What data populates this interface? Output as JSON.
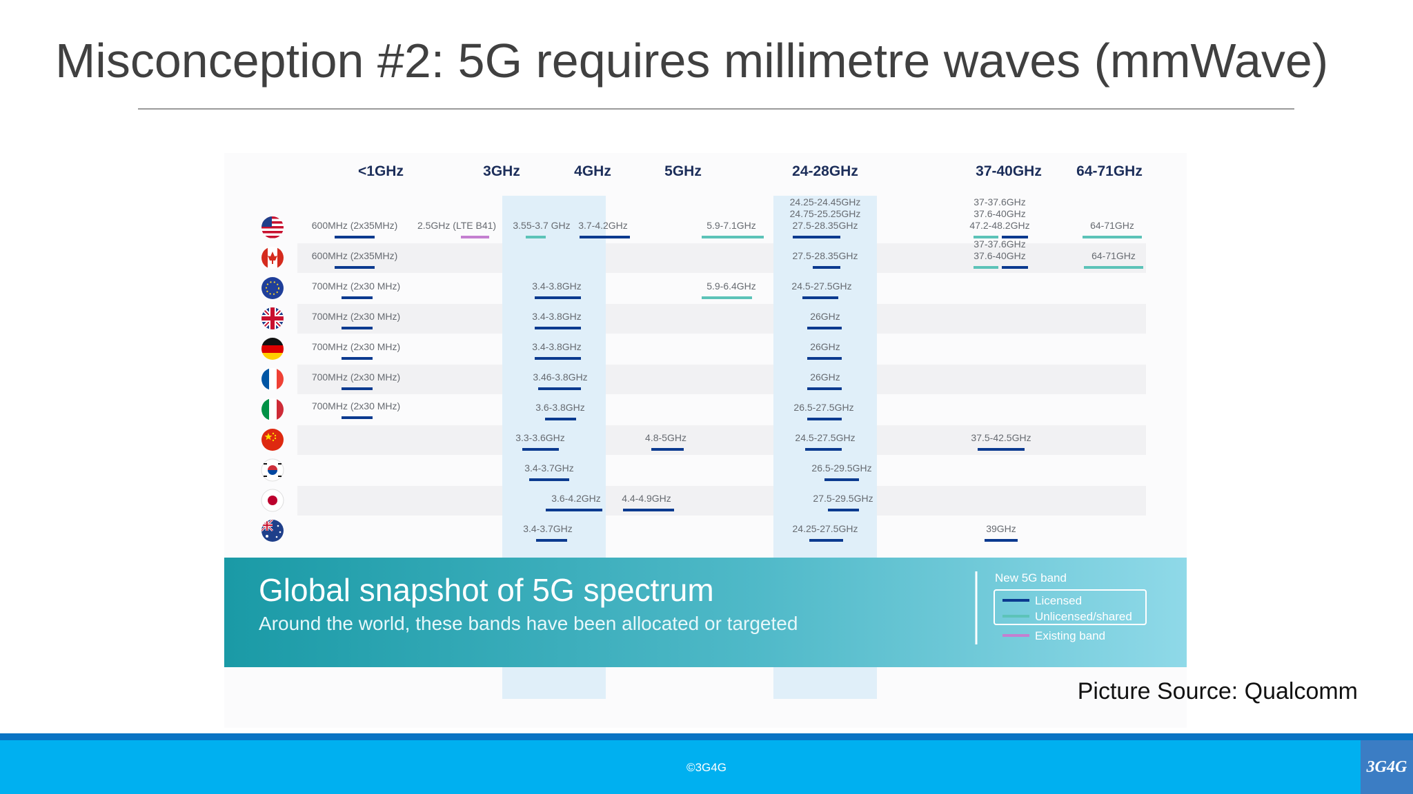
{
  "slide": {
    "title": "Misconception #2: 5G requires millimetre waves (mmWave)",
    "source_credit": "Picture Source: Qualcomm",
    "copyright": "©3G4G",
    "logo_text": "3G4G"
  },
  "figure": {
    "frequency_axis": [
      "<1GHz",
      "3GHz",
      "4GHz",
      "5GHz",
      "24-28GHz",
      "37-40GHz",
      "64-71GHz"
    ],
    "countries": [
      {
        "flag": "usa-flag-icon",
        "bands": [
          {
            "label": "600MHz (2x35MHz)",
            "type": "licensed"
          },
          {
            "label": "2.5GHz (LTE B41)",
            "type": "existing"
          },
          {
            "label": "3.55-3.7 GHz",
            "type": "unlicensed"
          },
          {
            "label": "3.7-4.2GHz",
            "type": "licensed"
          },
          {
            "label": "5.9-7.1GHz",
            "type": "unlicensed"
          },
          {
            "label": "24.25-24.45GHz",
            "type": "text"
          },
          {
            "label": "24.75-25.25GHz",
            "type": "text"
          },
          {
            "label": "27.5-28.35GHz",
            "type": "licensed"
          },
          {
            "label": "37-37.6GHz",
            "type": "text"
          },
          {
            "label": "37.6-40GHz",
            "type": "text"
          },
          {
            "label": "47.2-48.2GHz",
            "type": "licensed+unlicensed"
          },
          {
            "label": "64-71GHz",
            "type": "unlicensed"
          }
        ]
      },
      {
        "flag": "canada-flag-icon",
        "bands": [
          {
            "label": "600MHz (2x35MHz)",
            "type": "licensed"
          },
          {
            "label": "27.5-28.35GHz",
            "type": "licensed"
          },
          {
            "label": "37-37.6GHz",
            "type": "text"
          },
          {
            "label": "37.6-40GHz",
            "type": "unlicensed+licensed"
          },
          {
            "label": "64-71GHz",
            "type": "unlicensed"
          }
        ]
      },
      {
        "flag": "eu-flag-icon",
        "bands": [
          {
            "label": "700MHz (2x30 MHz)",
            "type": "licensed"
          },
          {
            "label": "3.4-3.8GHz",
            "type": "licensed"
          },
          {
            "label": "5.9-6.4GHz",
            "type": "unlicensed"
          },
          {
            "label": "24.5-27.5GHz",
            "type": "licensed"
          }
        ]
      },
      {
        "flag": "uk-flag-icon",
        "bands": [
          {
            "label": "700MHz (2x30 MHz)",
            "type": "licensed"
          },
          {
            "label": "3.4-3.8GHz",
            "type": "licensed"
          },
          {
            "label": "26GHz",
            "type": "licensed"
          }
        ]
      },
      {
        "flag": "germany-flag-icon",
        "bands": [
          {
            "label": "700MHz (2x30 MHz)",
            "type": "licensed"
          },
          {
            "label": "3.4-3.8GHz",
            "type": "licensed"
          },
          {
            "label": "26GHz",
            "type": "licensed"
          }
        ]
      },
      {
        "flag": "france-flag-icon",
        "bands": [
          {
            "label": "700MHz (2x30 MHz)",
            "type": "licensed"
          },
          {
            "label": "3.46-3.8GHz",
            "type": "licensed"
          },
          {
            "label": "26GHz",
            "type": "licensed"
          }
        ]
      },
      {
        "flag": "italy-flag-icon",
        "bands": [
          {
            "label": "700MHz (2x30 MHz)",
            "type": "licensed"
          },
          {
            "label": "3.6-3.8GHz",
            "type": "licensed"
          },
          {
            "label": "26.5-27.5GHz",
            "type": "licensed"
          }
        ]
      },
      {
        "flag": "china-flag-icon",
        "bands": [
          {
            "label": "3.3-3.6GHz",
            "type": "licensed"
          },
          {
            "label": "4.8-5GHz",
            "type": "licensed"
          },
          {
            "label": "24.5-27.5GHz",
            "type": "licensed"
          },
          {
            "label": "37.5-42.5GHz",
            "type": "licensed"
          }
        ]
      },
      {
        "flag": "south-korea-flag-icon",
        "bands": [
          {
            "label": "3.4-3.7GHz",
            "type": "licensed"
          },
          {
            "label": "26.5-29.5GHz",
            "type": "licensed"
          }
        ]
      },
      {
        "flag": "japan-flag-icon",
        "bands": [
          {
            "label": "3.6-4.2GHz",
            "type": "licensed"
          },
          {
            "label": "4.4-4.9GHz",
            "type": "licensed"
          },
          {
            "label": "27.5-29.5GHz",
            "type": "licensed"
          }
        ]
      },
      {
        "flag": "australia-flag-icon",
        "bands": [
          {
            "label": "3.4-3.7GHz",
            "type": "licensed"
          },
          {
            "label": "24.25-27.5GHz",
            "type": "licensed"
          },
          {
            "label": "39GHz",
            "type": "licensed"
          }
        ]
      }
    ],
    "banner": {
      "title": "Global snapshot of 5G spectrum",
      "subtitle": "Around the world, these bands have been allocated or targeted"
    },
    "legend": {
      "heading": "New 5G band",
      "licensed": "Licensed",
      "unlicensed": "Unlicensed/shared",
      "existing": "Existing band"
    },
    "colors": {
      "licensed": "#0b3a8f",
      "unlicensed": "#5cc3b8",
      "existing": "#c47fd0",
      "highlight_column": "#e0eff9",
      "banner_start": "#1a9aa6",
      "banner_end": "#8fd9e8"
    }
  }
}
